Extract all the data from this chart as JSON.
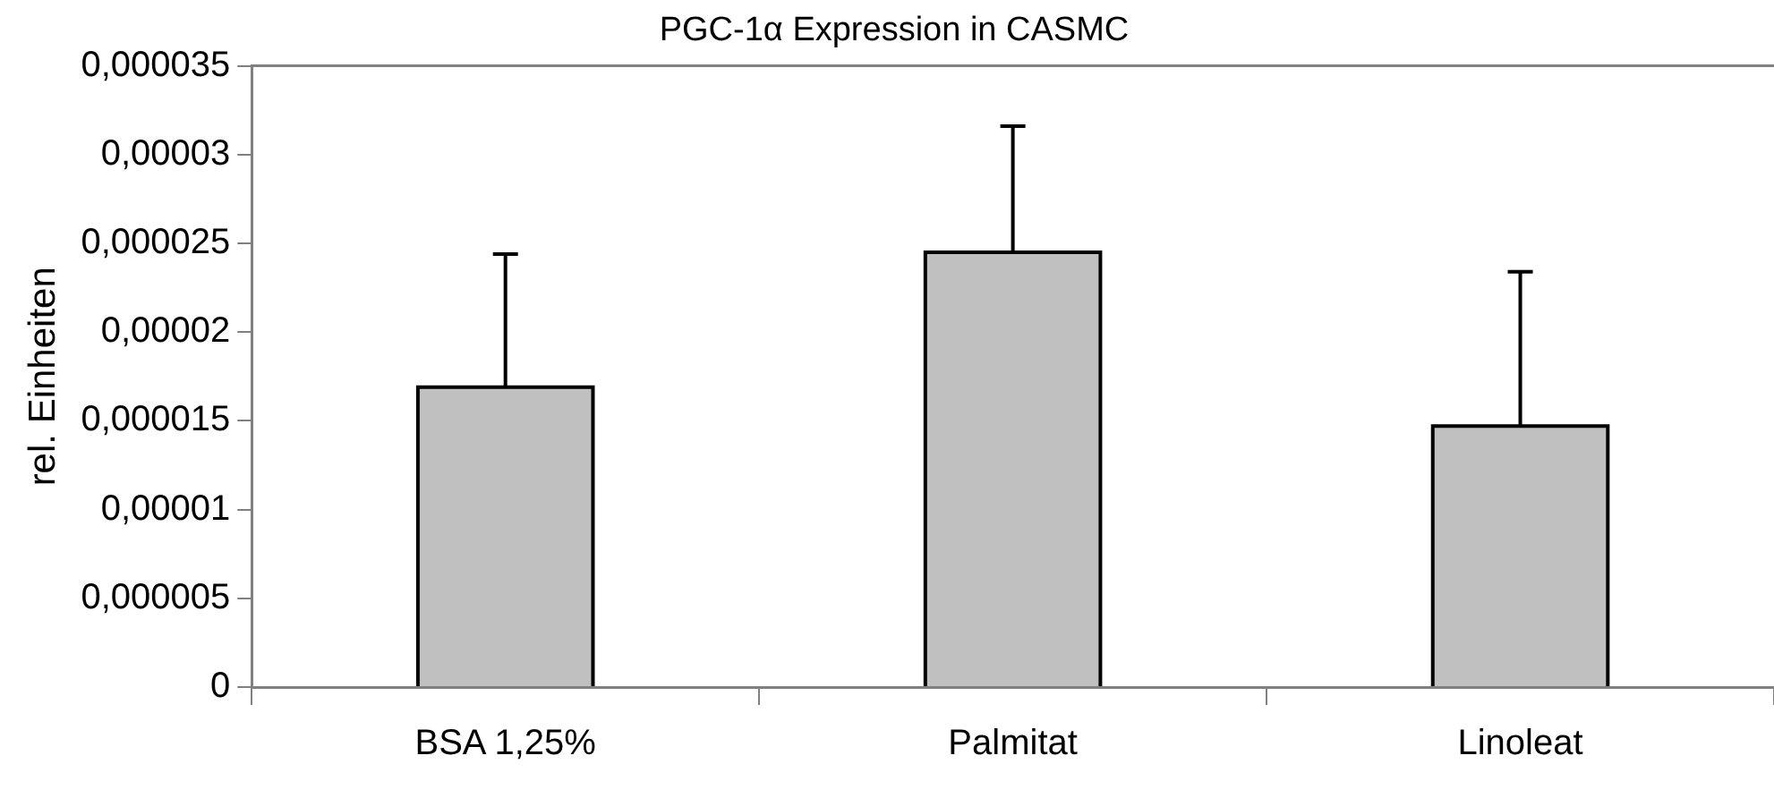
{
  "chart_data": {
    "type": "bar",
    "title": "PGC-1α Expression in CASMC",
    "ylabel": "rel. Einheiten",
    "categories": [
      "BSA 1,25%",
      "Palmitat",
      "Linoleat"
    ],
    "values": [
      1.69e-05,
      2.45e-05,
      1.47e-05
    ],
    "errors": [
      [
        1.69e-05,
        2.44e-05
      ],
      [
        2.45e-05,
        3.16e-05
      ],
      [
        1.47e-05,
        2.34e-05
      ]
    ],
    "color": "#c0c0c0",
    "ylim": [
      0,
      3.5e-05
    ],
    "yticks": [
      {
        "value": 0,
        "label": "0"
      },
      {
        "value": 5e-06,
        "label": "0,000005"
      },
      {
        "value": 1e-05,
        "label": "0,00001"
      },
      {
        "value": 1.5e-05,
        "label": "0,000015"
      },
      {
        "value": 2e-05,
        "label": "0,00002"
      },
      {
        "value": 2.5e-05,
        "label": "0,000025"
      },
      {
        "value": 3e-05,
        "label": "0,00003"
      },
      {
        "value": 3.5e-05,
        "label": "0,000035"
      }
    ],
    "grid": false,
    "legend": false
  }
}
